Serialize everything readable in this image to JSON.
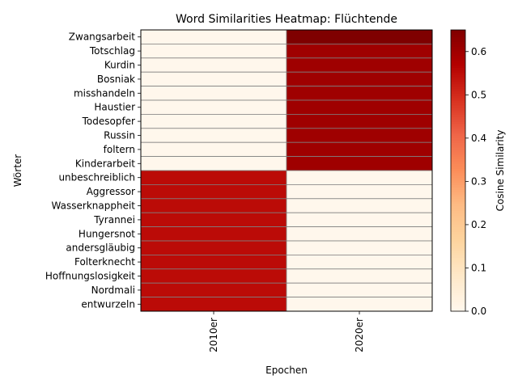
{
  "chart_data": {
    "type": "heatmap",
    "title": "Word Similarities Heatmap: Flüchtende",
    "xlabel": "Epochen",
    "ylabel": "Wörter",
    "x_categories": [
      "2010er",
      "2020er"
    ],
    "y_categories": [
      "Zwangsarbeit",
      "Totschlag",
      "Kurdin",
      "Bosniak",
      "misshandeln",
      "Haustier",
      "Todesopfer",
      "Russin",
      "foltern",
      "Kinderarbeit",
      "unbeschreiblich",
      "Aggressor",
      "Wasserknappheit",
      "Tyrannei",
      "Hungersnot",
      "andersgläubig",
      "Folterknecht",
      "Hoffnungslosigkeit",
      "Nordmali",
      "entwurzeln"
    ],
    "values": [
      [
        0.0,
        0.65
      ],
      [
        0.0,
        0.6
      ],
      [
        0.0,
        0.6
      ],
      [
        0.0,
        0.6
      ],
      [
        0.0,
        0.6
      ],
      [
        0.0,
        0.6
      ],
      [
        0.0,
        0.6
      ],
      [
        0.0,
        0.6
      ],
      [
        0.0,
        0.6
      ],
      [
        0.0,
        0.6
      ],
      [
        0.55,
        0.0
      ],
      [
        0.55,
        0.0
      ],
      [
        0.55,
        0.0
      ],
      [
        0.55,
        0.0
      ],
      [
        0.55,
        0.0
      ],
      [
        0.55,
        0.0
      ],
      [
        0.55,
        0.0
      ],
      [
        0.55,
        0.0
      ],
      [
        0.55,
        0.0
      ],
      [
        0.55,
        0.0
      ]
    ],
    "colorbar": {
      "label": "Cosine Similarity",
      "min": 0.0,
      "max": 0.65,
      "ticks": [
        "0.0",
        "0.1",
        "0.2",
        "0.3",
        "0.4",
        "0.5",
        "0.6"
      ],
      "colormap": "OrRd"
    }
  }
}
